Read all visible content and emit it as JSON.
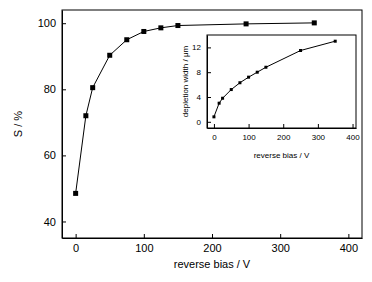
{
  "chart_data": [
    {
      "type": "line",
      "x_label": "reverse bias / V",
      "y_label": "S / %",
      "x": [
        0,
        15,
        25,
        50,
        75,
        100,
        125,
        150,
        250,
        350
      ],
      "series": [
        {
          "color": "#000000",
          "marker": "square",
          "line_style": "solid",
          "values": [
            48.5,
            72,
            80.5,
            90.3,
            95,
            97.5,
            98.6,
            99.3,
            99.8,
            100.1
          ]
        }
      ],
      "xlim": [
        -20,
        420
      ],
      "xticks": [
        0,
        100,
        200,
        300,
        400
      ],
      "ylim": [
        35,
        104
      ],
      "yticks": [
        40,
        60,
        80,
        100
      ],
      "grid": false
    },
    {
      "type": "line",
      "x_label": "reverse bias / V",
      "y_label": "depletion width / μm",
      "x": [
        0,
        15,
        25,
        50,
        75,
        100,
        125,
        150,
        250,
        350
      ],
      "series": [
        {
          "color": "#000000",
          "marker": "square",
          "line_style": "solid",
          "values": [
            0.8,
            3,
            3.8,
            5.2,
            6.3,
            7.2,
            8,
            8.8,
            11.5,
            13
          ]
        }
      ],
      "xlim": [
        -20,
        410
      ],
      "xticks": [
        0,
        100,
        200,
        300,
        400
      ],
      "ylim": [
        -1,
        14
      ],
      "yticks": [
        0,
        4,
        8,
        12
      ],
      "grid": false
    }
  ]
}
